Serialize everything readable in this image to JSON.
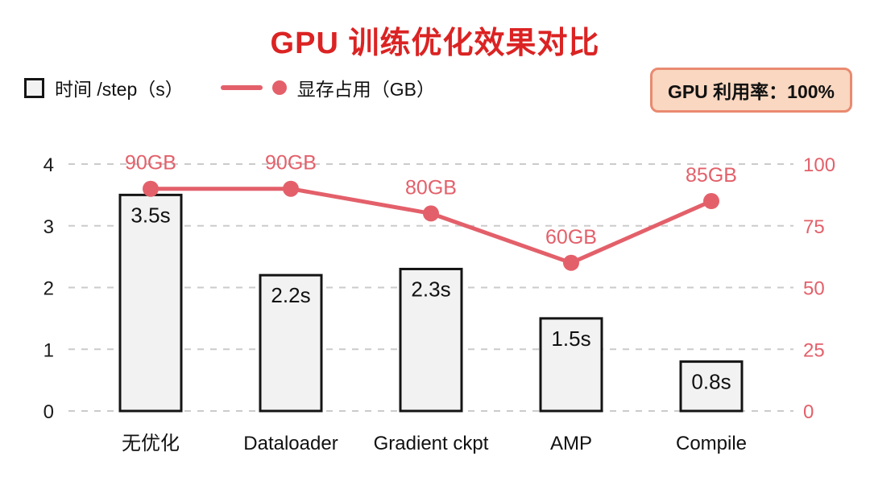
{
  "title": "GPU 训练优化效果对比",
  "legend": {
    "bar_label": "时间 /step（s）",
    "line_label": "显存占用（GB）"
  },
  "badge": {
    "text": "GPU 利用率：100%"
  },
  "chart_data": {
    "type": "combo",
    "title": "GPU 训练优化效果对比",
    "categories": [
      "无优化",
      "Dataloader",
      "Gradient ckpt",
      "AMP",
      "Compile"
    ],
    "series": [
      {
        "name": "时间 /step（s）",
        "type": "bar",
        "axis": "left",
        "values": [
          3.5,
          2.2,
          2.3,
          1.5,
          0.8
        ],
        "labels": [
          "3.5s",
          "2.2s",
          "2.3s",
          "1.5s",
          "0.8s"
        ]
      },
      {
        "name": "显存占用（GB）",
        "type": "line",
        "axis": "right",
        "values": [
          90,
          90,
          80,
          60,
          85
        ],
        "labels": [
          "90GB",
          "90GB",
          "80GB",
          "60GB",
          "85GB"
        ]
      }
    ],
    "left_axis": {
      "range": [
        0,
        4
      ],
      "ticks": [
        0,
        1,
        2,
        3,
        4
      ]
    },
    "right_axis": {
      "range": [
        0,
        100
      ],
      "ticks": [
        0,
        25,
        50,
        75,
        100
      ]
    },
    "grid": true,
    "legend_position": "top-left"
  },
  "colors": {
    "title_red": "#DB2323",
    "line_coral": "#E3606A",
    "axis_right_text": "#E3606A",
    "bar_fill": "#F2F2F2",
    "bar_border": "#141414",
    "grid": "#CBCBCB",
    "badge_bg": "#F9D7C0",
    "badge_border": "#E98A70"
  }
}
